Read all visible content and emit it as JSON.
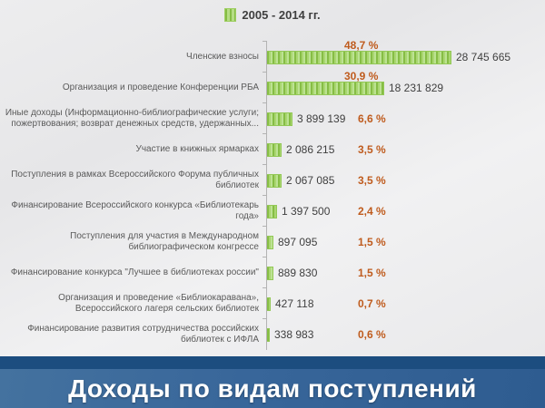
{
  "legend": {
    "label": "2005 - 2014 гг."
  },
  "banner": {
    "title": "Доходы по видам поступлений"
  },
  "colors": {
    "bar_green_dark": "#86bd45",
    "bar_green_light": "#b6dd85",
    "percent_orange": "#bf5b1d",
    "value_text": "#3f3f3f",
    "category_text": "#5a5a5a",
    "banner_strip_blue": "#1c4d7f",
    "banner_main_blue": "#38669a",
    "axis_gray": "#b3b3b3"
  },
  "chart_data": {
    "type": "bar",
    "orientation": "horizontal",
    "title": "Доходы по видам поступлений",
    "legend_entries": [
      "2005 - 2014 гг."
    ],
    "legend_position": "top",
    "grid": false,
    "xlim": [
      0,
      28745665
    ],
    "categories": [
      "Членские  взносы",
      "Организация и проведение  Конференции РБА",
      "Иные доходы (Информационно-библиографические  услуги; пожертвования; возврат денежных средств, удержанных...",
      "Участие в книжных ярмарках",
      "Поступления в рамках Всероссийского Форума публичных библиотек",
      "Финансирование Всероссийского конкурса «Библиотекарь года»",
      "Поступления для участия в Международном библиографическом конгрессе",
      "Финансирование конкурса \"Лучшее в библиотеках  россии\"",
      "Организация и проведение «Библиокаравана», Всероссийского лагеря сельских библиотек",
      "Финансирование развития сотрудничества российских библиотек с ИФЛА"
    ],
    "values": [
      28745665,
      18231829,
      3899139,
      2086215,
      2067085,
      1397500,
      897095,
      889830,
      427118,
      338983
    ],
    "value_labels": [
      "28 745 665",
      "18 231 829",
      "3 899 139",
      "2 086 215",
      "2 067 085",
      "1 397 500",
      "897 095",
      "889 830",
      "427 118",
      "338 983"
    ],
    "percent_labels": [
      "48,7 %",
      "30,9 %",
      "6,6 %",
      "3,5 %",
      "3,5 %",
      "2,4 %",
      "1,5 %",
      "1,5 %",
      "0,7 %",
      "0,6 %"
    ]
  }
}
